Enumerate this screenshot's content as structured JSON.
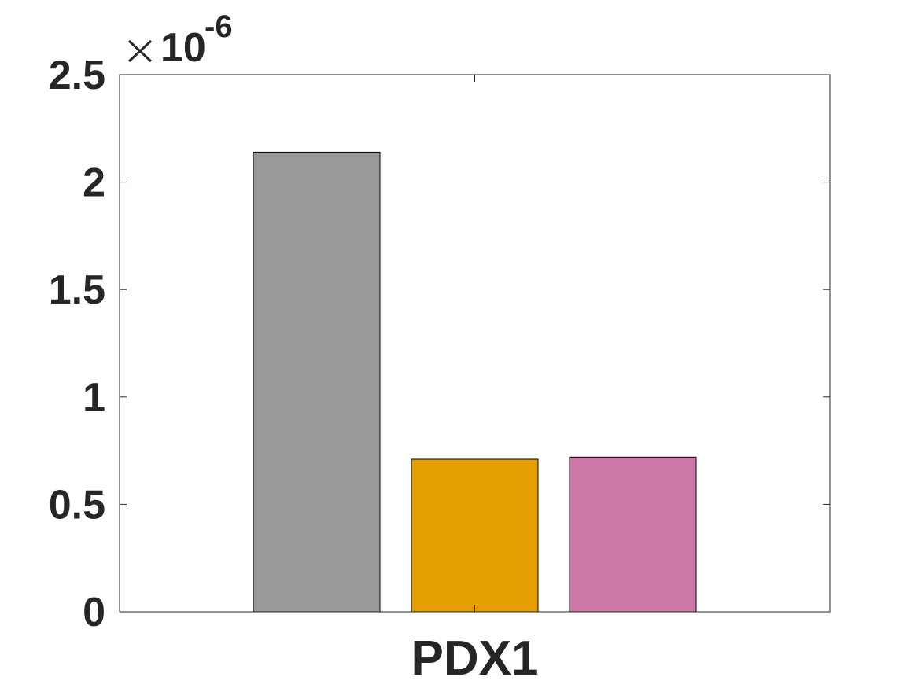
{
  "chart_data": {
    "type": "bar",
    "categories": [
      "PDX1"
    ],
    "series": [
      {
        "values": [
          2.14e-06
        ],
        "color": "#999999"
      },
      {
        "values": [
          7.1e-07
        ],
        "color": "#E69F00"
      },
      {
        "values": [
          7.2e-07
        ],
        "color": "#CC79A7"
      }
    ],
    "ylim": [
      0,
      2.5e-06
    ],
    "y_ticks": [
      0,
      0.5,
      1,
      1.5,
      2,
      2.5
    ],
    "y_tick_labels": [
      "0",
      "0.5",
      "1",
      "1.5",
      "2",
      "2.5"
    ],
    "y_multiplier": {
      "base": "10",
      "exponent": "-6"
    },
    "grid": false,
    "legend": "none",
    "title": "",
    "xlabel": "",
    "ylabel": ""
  }
}
